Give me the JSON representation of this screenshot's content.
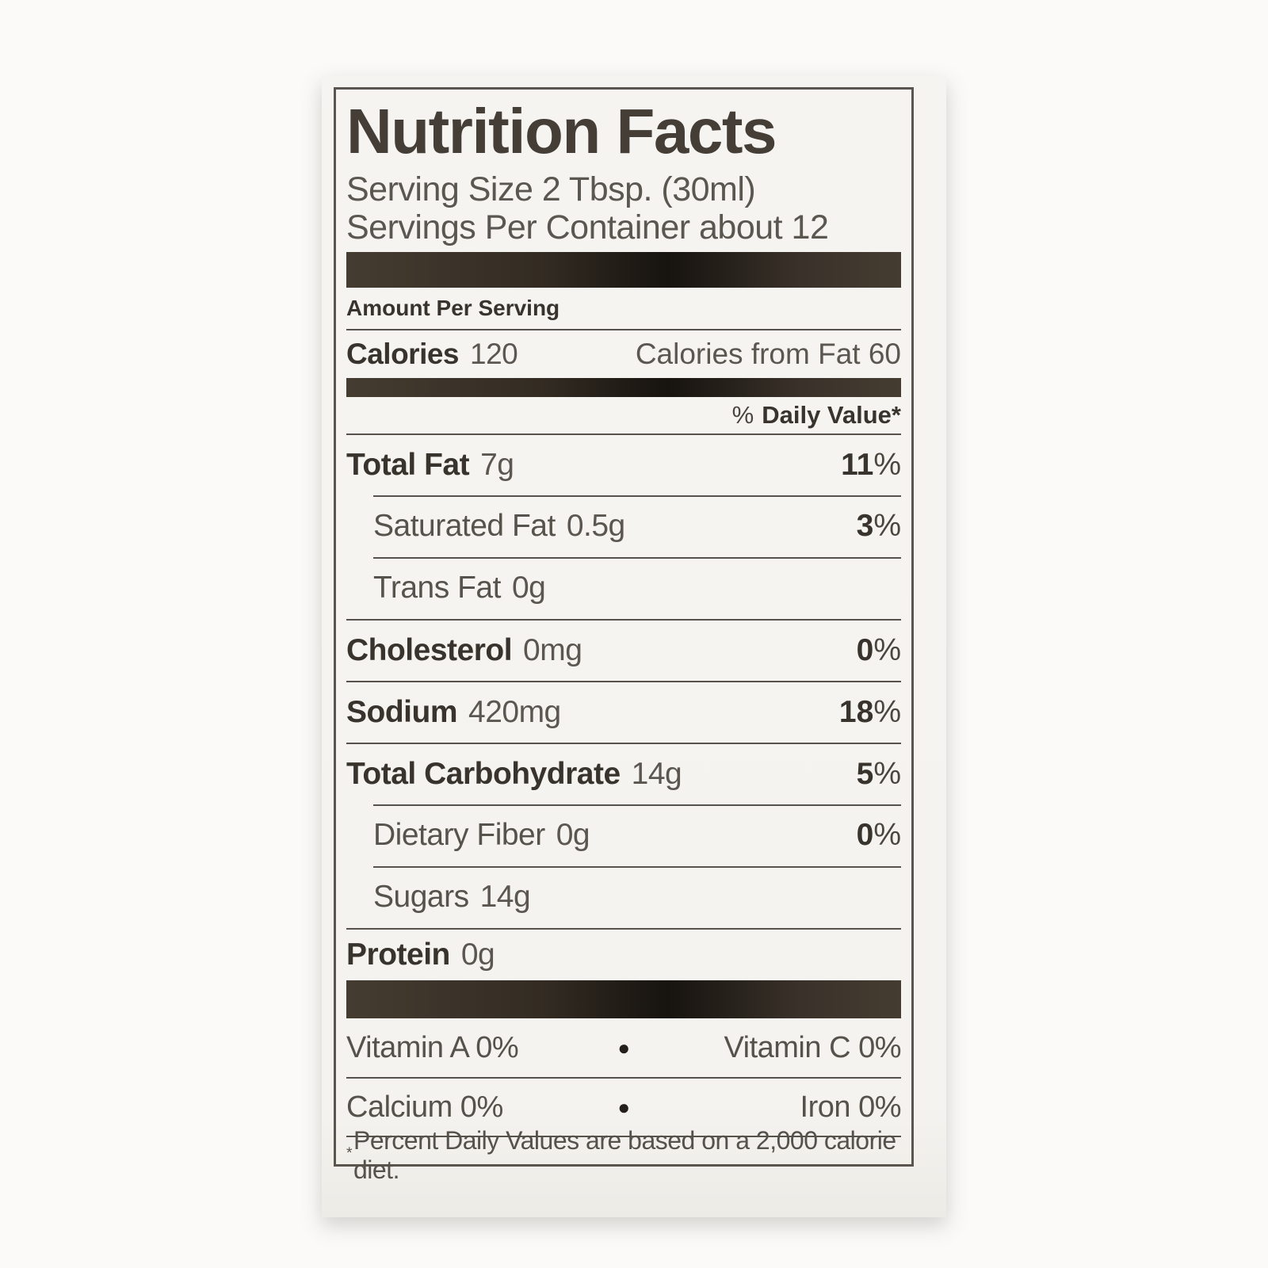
{
  "label": {
    "title": "Nutrition Facts",
    "serving_size": "Serving Size 2 Tbsp. (30ml)",
    "servings_per_container": "Servings Per Container about 12",
    "amount_per_serving": "Amount Per Serving",
    "calories": {
      "label": "Calories",
      "value": "120",
      "from_fat": "Calories from Fat 60"
    },
    "daily_value_header": {
      "percent_sign": "%",
      "text": "Daily Value*"
    },
    "rows": [
      {
        "name": "Total Fat",
        "amount": "7g",
        "dv_value": "11",
        "dv_unit": "%"
      },
      {
        "name": "Saturated Fat",
        "amount": "0.5g",
        "dv_value": "3",
        "dv_unit": "%"
      },
      {
        "name": "Trans Fat",
        "amount": "0g"
      },
      {
        "name": "Cholesterol",
        "amount": "0mg",
        "dv_value": "0",
        "dv_unit": "%"
      },
      {
        "name": "Sodium",
        "amount": "420mg",
        "dv_value": "18",
        "dv_unit": "%"
      },
      {
        "name": "Total Carbohydrate",
        "amount": "14g",
        "dv_value": "5",
        "dv_unit": "%"
      },
      {
        "name": "Dietary Fiber",
        "amount": "0g",
        "dv_value": "0",
        "dv_unit": "%"
      },
      {
        "name": "Sugars",
        "amount": "14g"
      },
      {
        "name": "Protein",
        "amount": "0g"
      }
    ],
    "micronutrients": [
      {
        "left": "Vitamin A 0%",
        "separator": "●",
        "right": "Vitamin C 0%"
      },
      {
        "left": "Calcium 0%",
        "separator": "●",
        "right": "Iron 0%"
      }
    ],
    "footnote": {
      "mark": "*",
      "text": "Percent Daily Values are based on a 2,000 calorie diet."
    },
    "colors": {
      "bar": "#2e2821",
      "rule": "#57534c",
      "text_bold": "#38332c",
      "text_regular": "#5b5650",
      "paper": "#f5f3ef"
    }
  }
}
